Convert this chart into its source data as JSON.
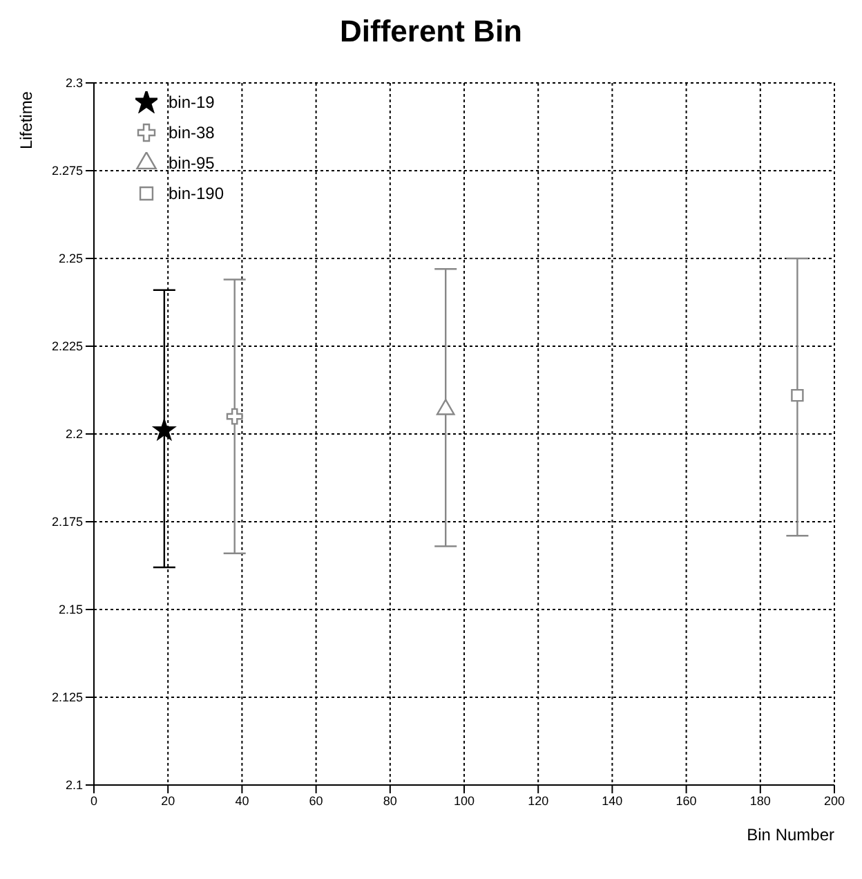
{
  "chart_data": {
    "type": "scatter",
    "title": "Different Bin",
    "xlabel": "Bin Number",
    "ylabel": "Lifetime",
    "xlim": [
      0,
      200
    ],
    "xticks": [
      0,
      20,
      40,
      60,
      80,
      100,
      120,
      140,
      160,
      180,
      200
    ],
    "ylim": [
      2.1,
      2.3
    ],
    "yticks": [
      2.1,
      2.125,
      2.15,
      2.175,
      2.2,
      2.225,
      2.25,
      2.275,
      2.3
    ],
    "grid": true,
    "legend": "top left",
    "series": [
      {
        "name": "bin-19",
        "color": "#000000",
        "marker": "star",
        "x": [
          19
        ],
        "values": [
          2.201
        ],
        "errors": [
          [
            2.162,
            2.241
          ]
        ]
      },
      {
        "name": "bin-38",
        "color": "#888888",
        "marker": "cross",
        "x": [
          38
        ],
        "values": [
          2.205
        ],
        "errors": [
          [
            2.166,
            2.244
          ]
        ]
      },
      {
        "name": "bin-95",
        "color": "#888888",
        "marker": "triangle",
        "x": [
          95
        ],
        "values": [
          2.207
        ],
        "errors": [
          [
            2.168,
            2.247
          ]
        ]
      },
      {
        "name": "bin-190",
        "color": "#888888",
        "marker": "square",
        "x": [
          190
        ],
        "values": [
          2.211
        ],
        "errors": [
          [
            2.171,
            2.25
          ]
        ]
      }
    ]
  }
}
